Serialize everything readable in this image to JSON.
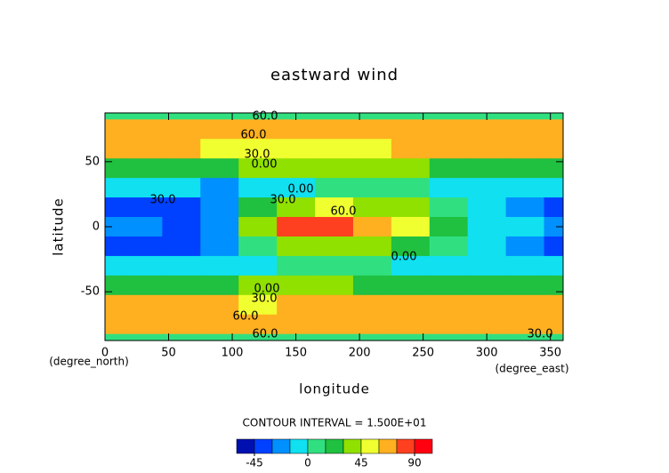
{
  "chart_data": {
    "type": "contour",
    "title": "eastward wind",
    "x_label": "longitude",
    "y_label": "latitude",
    "x_unit": "(degree_east)",
    "y_unit": "(degree_north)",
    "contour_interval": "CONTOUR INTERVAL = 1.500E+01",
    "x": [
      0,
      30,
      60,
      90,
      120,
      150,
      180,
      210,
      240,
      270,
      300,
      330,
      360
    ],
    "y": [
      90,
      75,
      60,
      45,
      30,
      15,
      0,
      -15,
      -30,
      -45,
      -60,
      -75,
      -90
    ],
    "z": [
      [
        10,
        10,
        10,
        10,
        10,
        10,
        10,
        10,
        10,
        10,
        10,
        10,
        10
      ],
      [
        65,
        65,
        65,
        65,
        65,
        65,
        65,
        65,
        65,
        65,
        65,
        65,
        65
      ],
      [
        62,
        62,
        60,
        55,
        50,
        48,
        55,
        58,
        60,
        60,
        62,
        62,
        62
      ],
      [
        25,
        25,
        25,
        20,
        30,
        40,
        40,
        35,
        30,
        25,
        25,
        25,
        25
      ],
      [
        -5,
        -5,
        -5,
        -20,
        -10,
        -5,
        0,
        5,
        0,
        -5,
        -5,
        -5,
        -5
      ],
      [
        -35,
        -35,
        -40,
        -30,
        20,
        40,
        45,
        40,
        30,
        10,
        -5,
        -20,
        -35
      ],
      [
        -20,
        -20,
        -35,
        -20,
        30,
        80,
        75,
        65,
        50,
        20,
        -5,
        -10,
        -20
      ],
      [
        -35,
        -35,
        -40,
        -30,
        10,
        40,
        40,
        35,
        20,
        5,
        -5,
        -20,
        -35
      ],
      [
        -5,
        -5,
        -5,
        -10,
        -5,
        0,
        0,
        0,
        -5,
        -5,
        -5,
        -5,
        -5
      ],
      [
        25,
        25,
        25,
        25,
        30,
        30,
        30,
        25,
        25,
        25,
        25,
        25,
        25
      ],
      [
        65,
        65,
        65,
        60,
        55,
        60,
        65,
        65,
        65,
        65,
        65,
        65,
        65
      ],
      [
        65,
        65,
        65,
        65,
        65,
        65,
        65,
        65,
        65,
        65,
        65,
        65,
        65
      ],
      [
        10,
        10,
        10,
        10,
        10,
        10,
        10,
        10,
        10,
        10,
        10,
        10,
        10
      ]
    ],
    "levels": [
      -60,
      -45,
      -30,
      -15,
      0,
      15,
      30,
      45,
      60,
      75,
      90,
      105
    ],
    "colors": [
      "#0010b0",
      "#0040ff",
      "#0090ff",
      "#10e0f0",
      "#30e080",
      "#20c040",
      "#90e000",
      "#f0ff30",
      "#ffb020",
      "#ff4020",
      "#ff0010"
    ],
    "colorbar_ticks": [
      -45,
      0,
      45,
      90
    ],
    "contour_labels": [
      "60.0",
      "60.0",
      "30.0",
      "0.00",
      "30.0",
      "30.0",
      "0.00",
      "60.0",
      "0.00",
      "0.00",
      "30.0",
      "60.0",
      "60.0",
      "30.0"
    ],
    "xlim": [
      0,
      360
    ],
    "ylim": [
      -87.5,
      87.5
    ],
    "xticks": [
      0,
      50,
      100,
      150,
      200,
      250,
      300,
      350
    ],
    "yticks": [
      -50,
      0,
      50
    ]
  }
}
